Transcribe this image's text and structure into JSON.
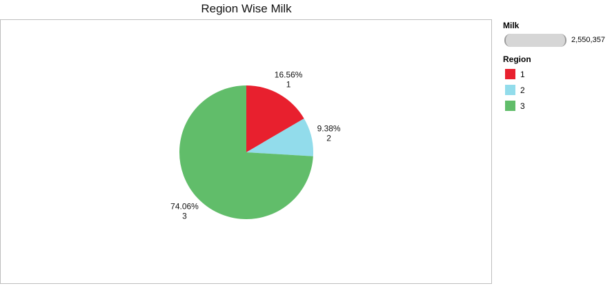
{
  "chart_data": {
    "type": "pie",
    "title": "Region Wise Milk",
    "slices": [
      {
        "category": "1",
        "percent": 16.56,
        "percent_label": "16.56%",
        "color": "#e8202e"
      },
      {
        "category": "2",
        "percent": 9.38,
        "percent_label": "9.38%",
        "color": "#92dceb"
      },
      {
        "category": "3",
        "percent": 74.06,
        "percent_label": "74.06%",
        "color": "#61bd6a"
      }
    ],
    "size_legend": {
      "title": "Milk",
      "value": "2,550,357"
    },
    "color_legend": {
      "title": "Region",
      "items": [
        {
          "label": "1",
          "color": "#e8202e"
        },
        {
          "label": "2",
          "color": "#92dceb"
        },
        {
          "label": "3",
          "color": "#61bd6a"
        }
      ]
    },
    "legend_position": "right"
  }
}
